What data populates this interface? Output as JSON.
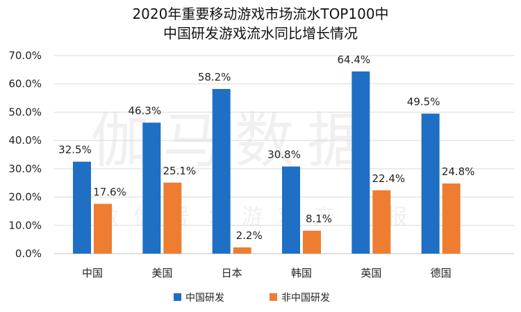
{
  "chart_data": {
    "type": "bar",
    "title_line1": "2020年重要移动游戏市场流水TOP100中",
    "title_line2": "中国研发游戏流水同比增长情况",
    "categories": [
      "中国",
      "美国",
      "日本",
      "韩国",
      "英国",
      "德国"
    ],
    "series": [
      {
        "name": "中国研发",
        "color": "#1f6fc5",
        "values": [
          32.5,
          46.3,
          58.2,
          30.8,
          64.4,
          49.5
        ],
        "labels": [
          "32.5%",
          "46.3%",
          "58.2%",
          "30.8%",
          "64.4%",
          "49.5%"
        ]
      },
      {
        "name": "非中国研发",
        "color": "#ee7d31",
        "values": [
          17.6,
          25.1,
          2.2,
          8.1,
          22.4,
          24.8
        ],
        "labels": [
          "17.6%",
          "25.1%",
          "2.2%",
          "8.1%",
          "22.4%",
          "24.8%"
        ]
      }
    ],
    "ylim": [
      0,
      70
    ],
    "yticks": [
      {
        "value": 0,
        "label": "0.0%"
      },
      {
        "value": 10,
        "label": "10.0%"
      },
      {
        "value": 20,
        "label": "20.0%"
      },
      {
        "value": 30,
        "label": "30.0%"
      },
      {
        "value": 40,
        "label": "40.0%"
      },
      {
        "value": 50,
        "label": "50.0%"
      },
      {
        "value": 60,
        "label": "60.0%"
      },
      {
        "value": 70,
        "label": "70.0%"
      }
    ],
    "grid": true,
    "legend_position": "bottom",
    "watermark": "伽马数据",
    "watermark_sub": "微信号：游戏产业报告"
  }
}
